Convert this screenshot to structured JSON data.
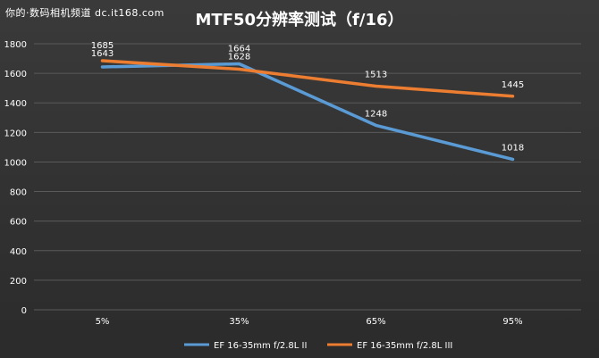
{
  "watermark": "你的·数码相机频道 dc.it168.com",
  "chart_data": {
    "type": "line",
    "title": "MTF50分辨率测试（f/16）",
    "xlabel": "",
    "ylabel": "",
    "categories": [
      "5%",
      "35%",
      "65%",
      "95%"
    ],
    "ylim": [
      0,
      1800
    ],
    "yticks": [
      "0",
      "200",
      "400",
      "600",
      "800",
      "1000",
      "1200",
      "1400",
      "1600",
      "1800"
    ],
    "grid": true,
    "legend_position": "bottom",
    "series": [
      {
        "name": "EF 16-35mm f/2.8L II",
        "color": "#5b9bd5",
        "values": [
          1643,
          1664,
          1248,
          1018
        ],
        "labels": [
          "1643",
          "1664",
          "1248",
          "1018"
        ]
      },
      {
        "name": "EF 16-35mm f/2.8L III",
        "color": "#ed7d31",
        "values": [
          1685,
          1628,
          1513,
          1445
        ],
        "labels": [
          "1685",
          "1628",
          "1513",
          "1445"
        ]
      }
    ]
  }
}
